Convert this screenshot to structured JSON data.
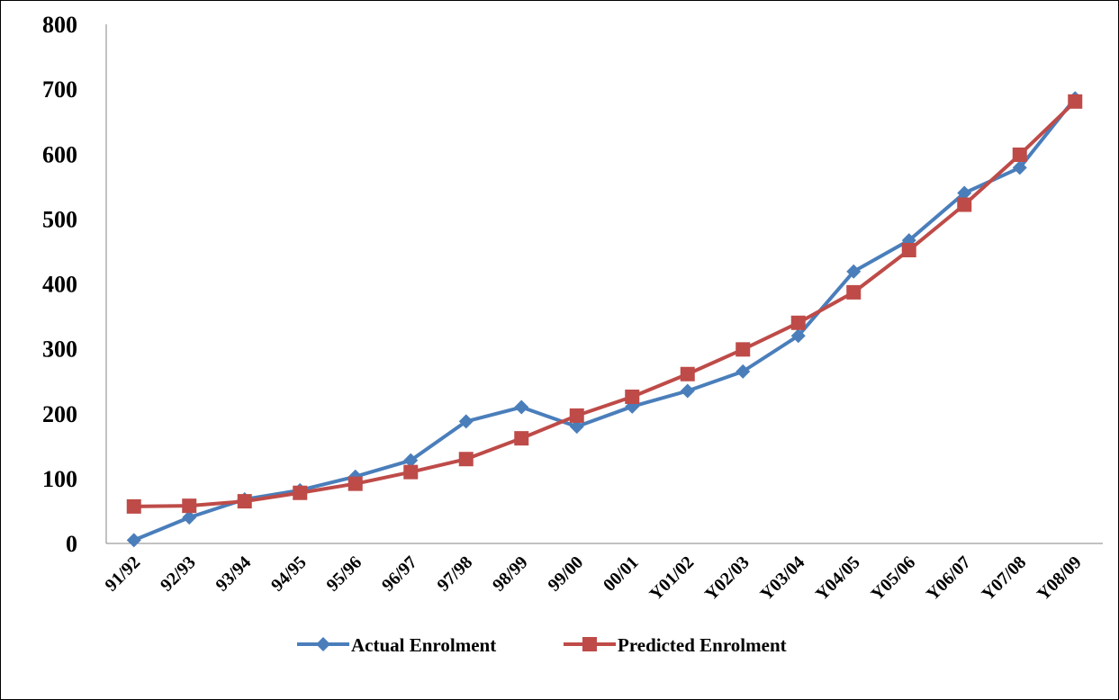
{
  "chart_data": {
    "type": "line",
    "categories": [
      "91/92",
      "92/93",
      "93/94",
      "94/95",
      "95/96",
      "96/97",
      "97/98",
      "98/99",
      "99/00",
      "00/01",
      "Y01/02",
      "Y02/03",
      "Y03/04",
      "Y04/05",
      "Y05/06",
      "Y06/07",
      "Y07/08",
      "Y08/09"
    ],
    "series": [
      {
        "name": "Actual Enrolment",
        "color": "#4a7ebb",
        "marker": "diamond",
        "values": [
          5,
          40,
          68,
          82,
          103,
          128,
          188,
          210,
          180,
          211,
          235,
          265,
          320,
          419,
          467,
          540,
          579,
          686
        ]
      },
      {
        "name": "Predicted Enrolment",
        "color": "#be4b48",
        "marker": "square",
        "values": [
          57,
          58,
          65,
          78,
          92,
          110,
          130,
          162,
          197,
          226,
          261,
          299,
          340,
          387,
          452,
          522,
          599,
          681
        ]
      }
    ],
    "ylim": [
      0,
      800
    ],
    "yticks": [
      0,
      100,
      200,
      300,
      400,
      500,
      600,
      700,
      800
    ],
    "grid": false,
    "legend": "bottom"
  }
}
